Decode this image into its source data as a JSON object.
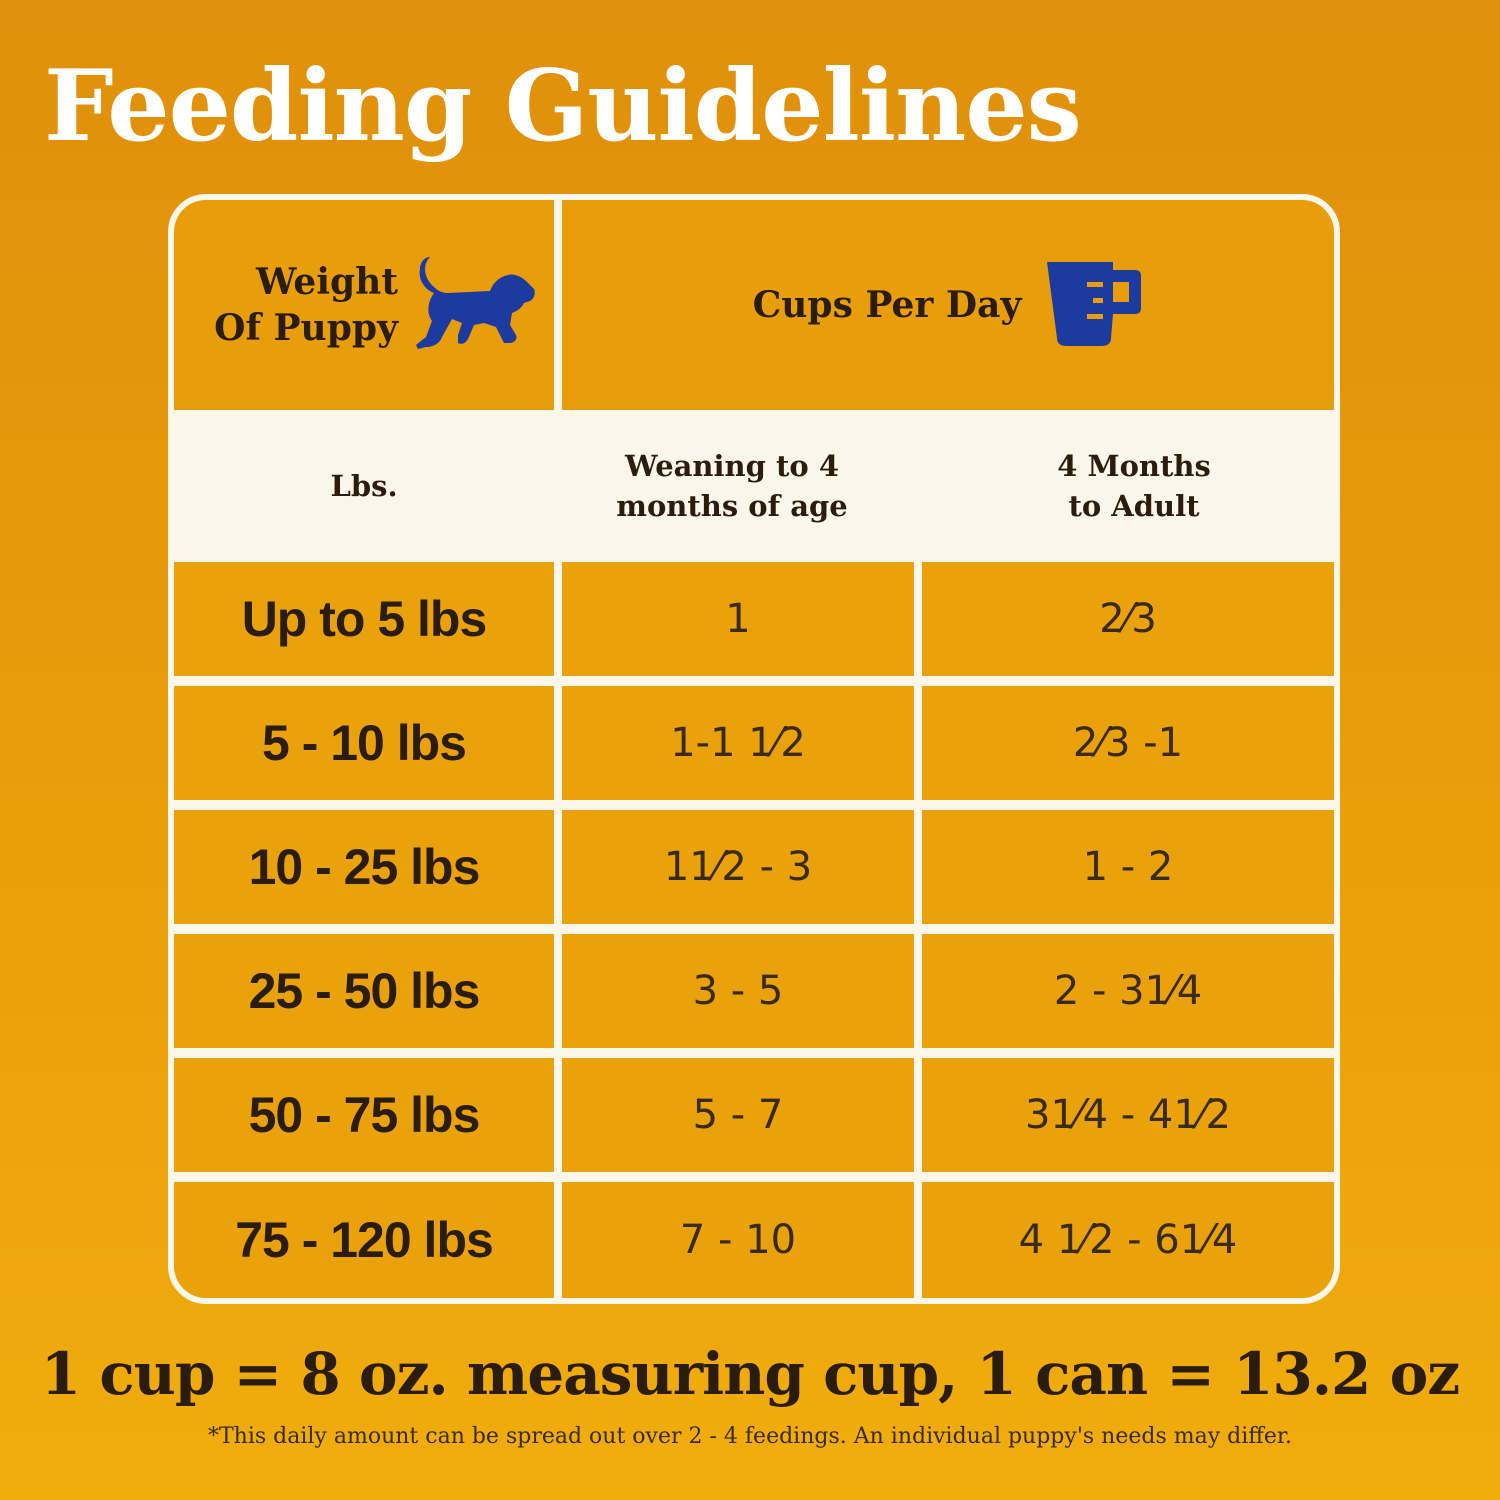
{
  "title": "Feeding Guidelines",
  "header": {
    "weight_label": "Weight Of Puppy",
    "cups_label": "Cups Per Day",
    "icons": [
      "puppy-icon",
      "measuring-cup-icon"
    ],
    "icon_color": "#1c3aa0"
  },
  "subheader": {
    "lbs": "Lbs.",
    "col1": "Weaning to 4 months of age",
    "col2": "4 Months to Adult"
  },
  "rows": [
    {
      "weight": "Up to 5 lbs",
      "weaning": "1",
      "adult": "2⁄3"
    },
    {
      "weight": "5 - 10 lbs",
      "weaning": "1-1 1⁄2",
      "adult": "2⁄3 -1"
    },
    {
      "weight": "10 - 25 lbs",
      "weaning": "11⁄2 - 3",
      "adult": "1 - 2"
    },
    {
      "weight": "25 - 50 lbs",
      "weaning": "3 - 5",
      "adult": "2 - 31⁄4"
    },
    {
      "weight": "50 - 75 lbs",
      "weaning": "5 - 7",
      "adult": "31⁄4 - 41⁄2"
    },
    {
      "weight": "75 - 120 lbs",
      "weaning": "7 - 10",
      "adult": "4 1⁄2 - 61⁄4"
    }
  ],
  "footer": {
    "main": "1 cup = 8 oz. measuring cup, 1 can = 13.2 oz",
    "note": "*This daily amount can be spread out over 2 - 4 feedings. An individual puppy's needs may differ."
  },
  "colors": {
    "background": "#e99e0a",
    "cell": "#e9a20b",
    "border": "#fdf7ea",
    "text": "#2b1d0e"
  }
}
